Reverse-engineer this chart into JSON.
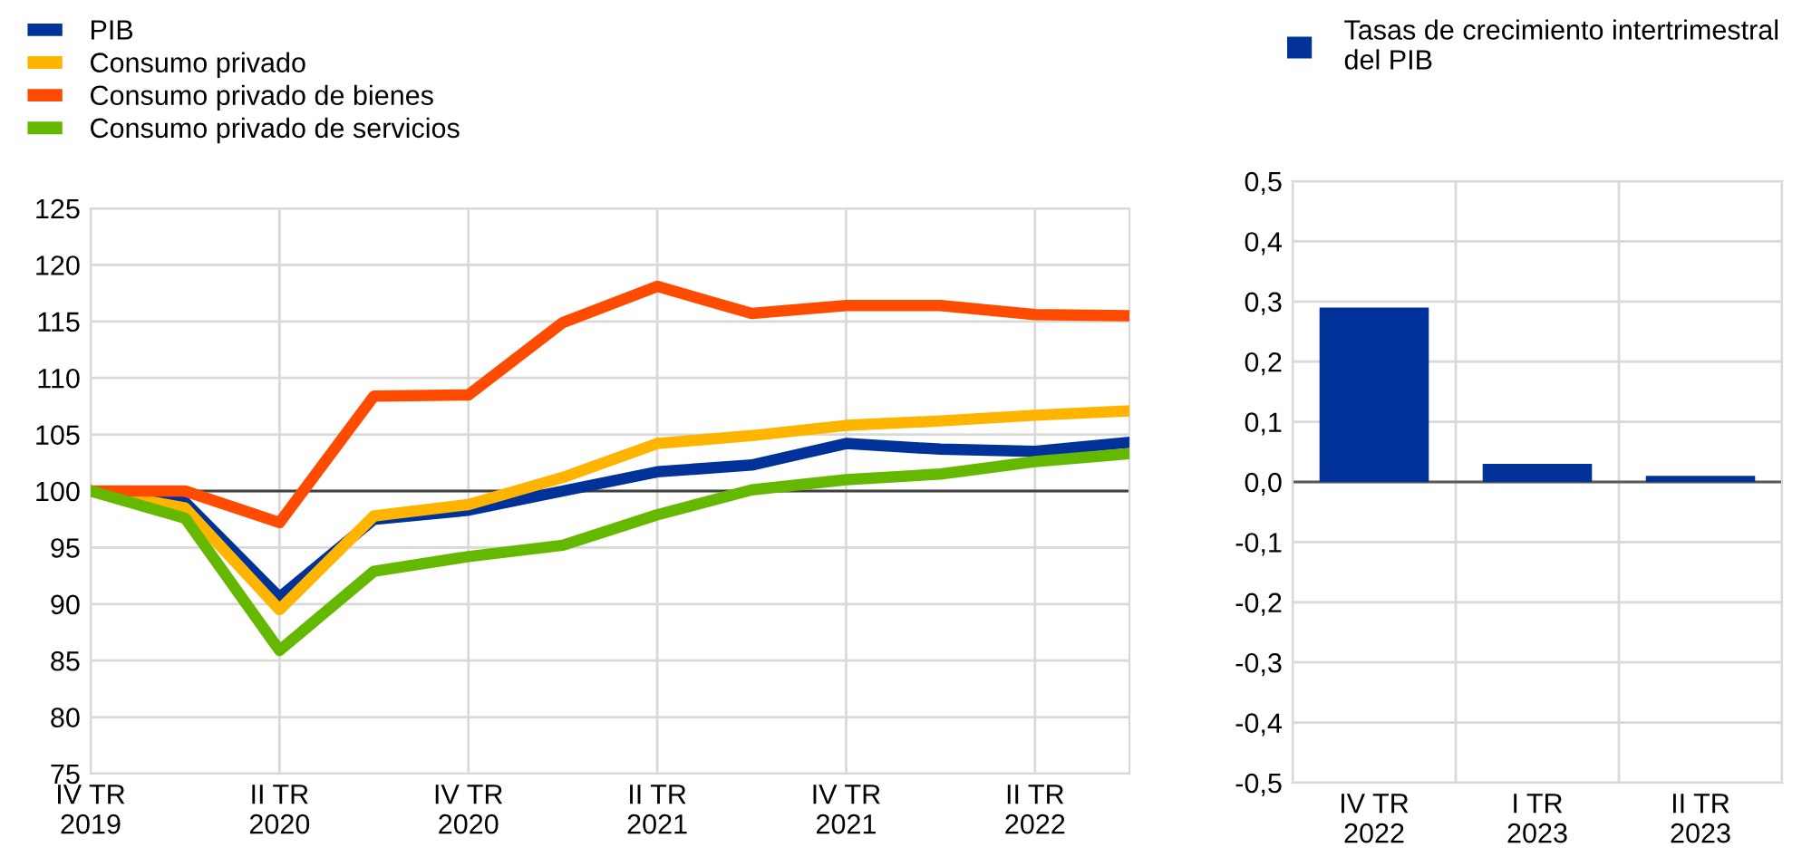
{
  "chart_data": [
    {
      "type": "line",
      "categories": [
        "IV TR\n2019",
        null,
        "II TR\n2020",
        null,
        "IV TR\n2020",
        null,
        "II TR\n2021",
        null,
        "IV TR\n2021",
        null,
        "II TR\n2022",
        null
      ],
      "series": [
        {
          "name": "PIB",
          "color": "#003299",
          "values": [
            100,
            99.0,
            90.6,
            97.5,
            98.3,
            100.0,
            101.7,
            102.3,
            104.2,
            103.7,
            103.5,
            104.3
          ]
        },
        {
          "name": "Consumo privado",
          "color": "#ffb400",
          "values": [
            100,
            98.5,
            89.5,
            97.8,
            98.8,
            101.2,
            104.2,
            104.9,
            105.8,
            106.2,
            106.7,
            107.1
          ]
        },
        {
          "name": "Consumo privado de bienes",
          "color": "#ff4b00",
          "values": [
            100,
            100,
            97.2,
            108.4,
            108.5,
            114.9,
            118.1,
            115.7,
            116.4,
            116.4,
            115.6,
            115.5
          ]
        },
        {
          "name": "Consumo privado de servicios",
          "color": "#65b800",
          "values": [
            100,
            97.6,
            85.9,
            92.9,
            94.2,
            95.2,
            97.9,
            100.1,
            101.0,
            101.5,
            102.6,
            103.3
          ]
        }
      ],
      "ylim": [
        75,
        125
      ],
      "yticks": [
        75,
        80,
        85,
        90,
        95,
        100,
        105,
        110,
        115,
        120,
        125
      ],
      "ref_lines": [
        {
          "axis": "y",
          "value": 100,
          "color": "#404040"
        }
      ],
      "grid": true,
      "legend": "top left",
      "marker": "none",
      "line_style": "solid"
    },
    {
      "type": "bar",
      "categories": [
        "IV TR\n2022",
        "I TR\n2023",
        "II TR\n2023"
      ],
      "series": [
        {
          "name": "Tasas de crecimiento intertrimestral\ndel PIB",
          "color": "#003299",
          "values": [
            0.29,
            0.03,
            0.01
          ]
        }
      ],
      "ylim": [
        -0.5,
        0.5
      ],
      "yticks": [
        {
          "value": -0.5,
          "label": "-0,5"
        },
        {
          "value": -0.4,
          "label": "-0,4"
        },
        {
          "value": -0.3,
          "label": "-0,3"
        },
        {
          "value": -0.2,
          "label": "-0,2"
        },
        {
          "value": -0.1,
          "label": "-0,1"
        },
        {
          "value": 0,
          "label": "0,0"
        },
        {
          "value": 0.1,
          "label": "0,1"
        },
        {
          "value": 0.2,
          "label": "0,2"
        },
        {
          "value": 0.3,
          "label": "0,3"
        },
        {
          "value": 0.4,
          "label": "0,4"
        },
        {
          "value": 0.5,
          "label": "0,5"
        }
      ],
      "ref_lines": [
        {
          "axis": "y",
          "value": 0,
          "color": "#595959"
        }
      ],
      "grid": true,
      "legend": "top left"
    }
  ]
}
